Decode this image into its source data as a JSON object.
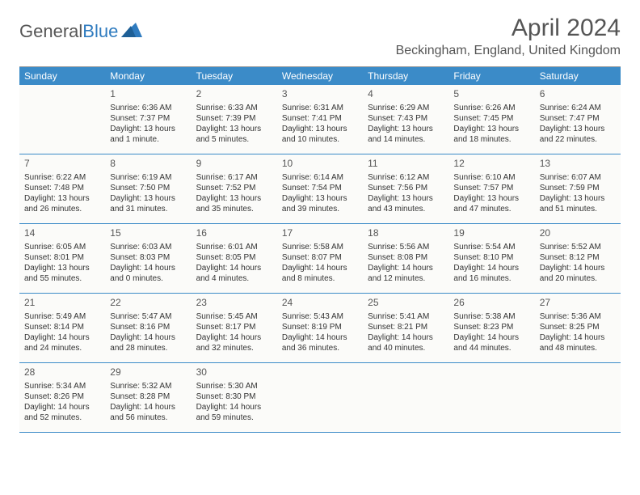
{
  "logo": {
    "text1": "General",
    "text2": "Blue"
  },
  "title": "April 2024",
  "location": "Beckingham, England, United Kingdom",
  "colors": {
    "header_bg": "#3b8bc8",
    "header_text": "#ffffff",
    "cell_bg": "#fbfbf9",
    "divider": "#3b8bc8",
    "text": "#333333",
    "logo_gray": "#555555",
    "logo_blue": "#2f7bbf"
  },
  "daynames": [
    "Sunday",
    "Monday",
    "Tuesday",
    "Wednesday",
    "Thursday",
    "Friday",
    "Saturday"
  ],
  "rows": [
    [
      {
        "n": "",
        "lines": [
          "",
          "",
          "",
          ""
        ]
      },
      {
        "n": "1",
        "lines": [
          "Sunrise: 6:36 AM",
          "Sunset: 7:37 PM",
          "Daylight: 13 hours",
          "and 1 minute."
        ]
      },
      {
        "n": "2",
        "lines": [
          "Sunrise: 6:33 AM",
          "Sunset: 7:39 PM",
          "Daylight: 13 hours",
          "and 5 minutes."
        ]
      },
      {
        "n": "3",
        "lines": [
          "Sunrise: 6:31 AM",
          "Sunset: 7:41 PM",
          "Daylight: 13 hours",
          "and 10 minutes."
        ]
      },
      {
        "n": "4",
        "lines": [
          "Sunrise: 6:29 AM",
          "Sunset: 7:43 PM",
          "Daylight: 13 hours",
          "and 14 minutes."
        ]
      },
      {
        "n": "5",
        "lines": [
          "Sunrise: 6:26 AM",
          "Sunset: 7:45 PM",
          "Daylight: 13 hours",
          "and 18 minutes."
        ]
      },
      {
        "n": "6",
        "lines": [
          "Sunrise: 6:24 AM",
          "Sunset: 7:47 PM",
          "Daylight: 13 hours",
          "and 22 minutes."
        ]
      }
    ],
    [
      {
        "n": "7",
        "lines": [
          "Sunrise: 6:22 AM",
          "Sunset: 7:48 PM",
          "Daylight: 13 hours",
          "and 26 minutes."
        ]
      },
      {
        "n": "8",
        "lines": [
          "Sunrise: 6:19 AM",
          "Sunset: 7:50 PM",
          "Daylight: 13 hours",
          "and 31 minutes."
        ]
      },
      {
        "n": "9",
        "lines": [
          "Sunrise: 6:17 AM",
          "Sunset: 7:52 PM",
          "Daylight: 13 hours",
          "and 35 minutes."
        ]
      },
      {
        "n": "10",
        "lines": [
          "Sunrise: 6:14 AM",
          "Sunset: 7:54 PM",
          "Daylight: 13 hours",
          "and 39 minutes."
        ]
      },
      {
        "n": "11",
        "lines": [
          "Sunrise: 6:12 AM",
          "Sunset: 7:56 PM",
          "Daylight: 13 hours",
          "and 43 minutes."
        ]
      },
      {
        "n": "12",
        "lines": [
          "Sunrise: 6:10 AM",
          "Sunset: 7:57 PM",
          "Daylight: 13 hours",
          "and 47 minutes."
        ]
      },
      {
        "n": "13",
        "lines": [
          "Sunrise: 6:07 AM",
          "Sunset: 7:59 PM",
          "Daylight: 13 hours",
          "and 51 minutes."
        ]
      }
    ],
    [
      {
        "n": "14",
        "lines": [
          "Sunrise: 6:05 AM",
          "Sunset: 8:01 PM",
          "Daylight: 13 hours",
          "and 55 minutes."
        ]
      },
      {
        "n": "15",
        "lines": [
          "Sunrise: 6:03 AM",
          "Sunset: 8:03 PM",
          "Daylight: 14 hours",
          "and 0 minutes."
        ]
      },
      {
        "n": "16",
        "lines": [
          "Sunrise: 6:01 AM",
          "Sunset: 8:05 PM",
          "Daylight: 14 hours",
          "and 4 minutes."
        ]
      },
      {
        "n": "17",
        "lines": [
          "Sunrise: 5:58 AM",
          "Sunset: 8:07 PM",
          "Daylight: 14 hours",
          "and 8 minutes."
        ]
      },
      {
        "n": "18",
        "lines": [
          "Sunrise: 5:56 AM",
          "Sunset: 8:08 PM",
          "Daylight: 14 hours",
          "and 12 minutes."
        ]
      },
      {
        "n": "19",
        "lines": [
          "Sunrise: 5:54 AM",
          "Sunset: 8:10 PM",
          "Daylight: 14 hours",
          "and 16 minutes."
        ]
      },
      {
        "n": "20",
        "lines": [
          "Sunrise: 5:52 AM",
          "Sunset: 8:12 PM",
          "Daylight: 14 hours",
          "and 20 minutes."
        ]
      }
    ],
    [
      {
        "n": "21",
        "lines": [
          "Sunrise: 5:49 AM",
          "Sunset: 8:14 PM",
          "Daylight: 14 hours",
          "and 24 minutes."
        ]
      },
      {
        "n": "22",
        "lines": [
          "Sunrise: 5:47 AM",
          "Sunset: 8:16 PM",
          "Daylight: 14 hours",
          "and 28 minutes."
        ]
      },
      {
        "n": "23",
        "lines": [
          "Sunrise: 5:45 AM",
          "Sunset: 8:17 PM",
          "Daylight: 14 hours",
          "and 32 minutes."
        ]
      },
      {
        "n": "24",
        "lines": [
          "Sunrise: 5:43 AM",
          "Sunset: 8:19 PM",
          "Daylight: 14 hours",
          "and 36 minutes."
        ]
      },
      {
        "n": "25",
        "lines": [
          "Sunrise: 5:41 AM",
          "Sunset: 8:21 PM",
          "Daylight: 14 hours",
          "and 40 minutes."
        ]
      },
      {
        "n": "26",
        "lines": [
          "Sunrise: 5:38 AM",
          "Sunset: 8:23 PM",
          "Daylight: 14 hours",
          "and 44 minutes."
        ]
      },
      {
        "n": "27",
        "lines": [
          "Sunrise: 5:36 AM",
          "Sunset: 8:25 PM",
          "Daylight: 14 hours",
          "and 48 minutes."
        ]
      }
    ],
    [
      {
        "n": "28",
        "lines": [
          "Sunrise: 5:34 AM",
          "Sunset: 8:26 PM",
          "Daylight: 14 hours",
          "and 52 minutes."
        ]
      },
      {
        "n": "29",
        "lines": [
          "Sunrise: 5:32 AM",
          "Sunset: 8:28 PM",
          "Daylight: 14 hours",
          "and 56 minutes."
        ]
      },
      {
        "n": "30",
        "lines": [
          "Sunrise: 5:30 AM",
          "Sunset: 8:30 PM",
          "Daylight: 14 hours",
          "and 59 minutes."
        ]
      },
      {
        "n": "",
        "lines": [
          "",
          "",
          "",
          ""
        ]
      },
      {
        "n": "",
        "lines": [
          "",
          "",
          "",
          ""
        ]
      },
      {
        "n": "",
        "lines": [
          "",
          "",
          "",
          ""
        ]
      },
      {
        "n": "",
        "lines": [
          "",
          "",
          "",
          ""
        ]
      }
    ]
  ]
}
